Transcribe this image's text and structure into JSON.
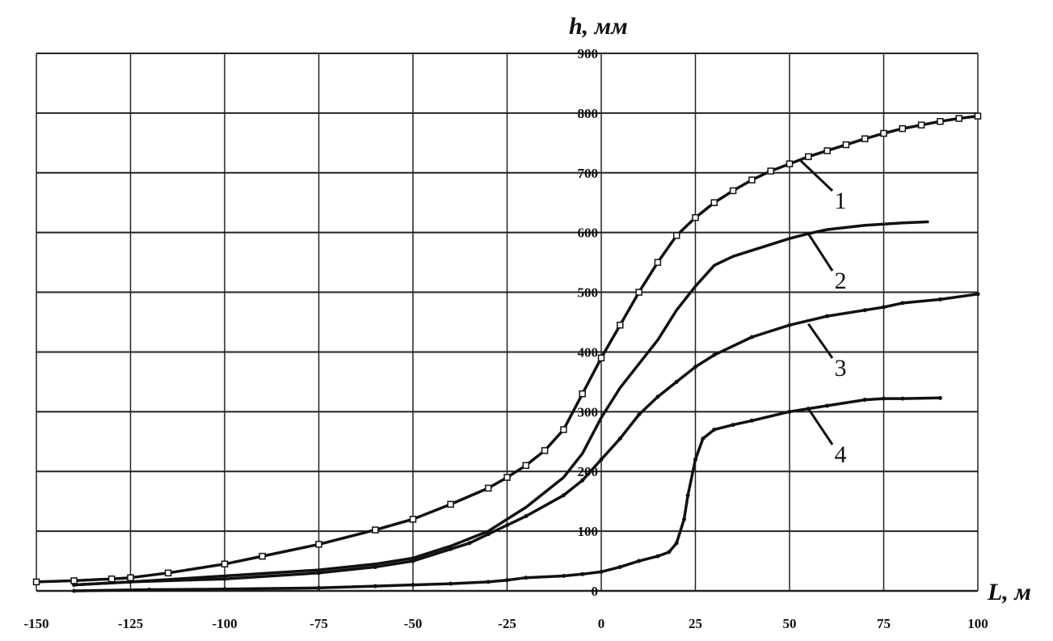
{
  "chart_data": {
    "type": "line",
    "title": "",
    "xlabel": "L, м",
    "ylabel": "h, мм",
    "xlim": [
      -150,
      100
    ],
    "ylim": [
      0,
      900
    ],
    "xticks": [
      -150,
      -125,
      -100,
      -75,
      -50,
      -25,
      0,
      25,
      50,
      75,
      100
    ],
    "yticks": [
      0,
      100,
      200,
      300,
      400,
      500,
      600,
      700,
      800,
      900
    ],
    "grid": true,
    "legend": "none (curve numbers with leader lines)",
    "series": [
      {
        "name": "1",
        "marker": "open-square",
        "x": [
          -150,
          -140,
          -130,
          -125,
          -115,
          -100,
          -90,
          -75,
          -60,
          -50,
          -40,
          -30,
          -25,
          -20,
          -15,
          -10,
          -5,
          0,
          5,
          10,
          15,
          20,
          25,
          30,
          35,
          40,
          45,
          50,
          55,
          60,
          65,
          70,
          75,
          80,
          85,
          90,
          95,
          100
        ],
        "y": [
          15,
          17,
          20,
          22,
          30,
          45,
          58,
          78,
          102,
          120,
          145,
          172,
          190,
          210,
          235,
          270,
          330,
          390,
          445,
          500,
          550,
          595,
          625,
          650,
          670,
          688,
          703,
          715,
          727,
          737,
          747,
          757,
          766,
          774,
          780,
          786,
          791,
          795
        ]
      },
      {
        "name": "2",
        "marker": "none",
        "x": [
          -140,
          -125,
          -100,
          -75,
          -60,
          -50,
          -40,
          -30,
          -25,
          -20,
          -15,
          -10,
          -5,
          0,
          5,
          10,
          15,
          20,
          25,
          30,
          35,
          40,
          50,
          55,
          60,
          70,
          80,
          87
        ],
        "y": [
          10,
          15,
          25,
          35,
          45,
          55,
          75,
          100,
          120,
          140,
          165,
          190,
          230,
          290,
          340,
          380,
          420,
          470,
          510,
          545,
          560,
          570,
          590,
          598,
          605,
          612,
          616,
          618
        ]
      },
      {
        "name": "3",
        "marker": "dot",
        "x": [
          -140,
          -125,
          -100,
          -75,
          -60,
          -50,
          -40,
          -35,
          -30,
          -25,
          -20,
          -10,
          -5,
          0,
          5,
          10,
          15,
          20,
          25,
          30,
          40,
          50,
          60,
          70,
          75,
          80,
          90,
          100
        ],
        "y": [
          10,
          15,
          20,
          30,
          40,
          50,
          70,
          80,
          95,
          110,
          125,
          160,
          185,
          220,
          255,
          295,
          325,
          350,
          375,
          395,
          425,
          445,
          460,
          470,
          475,
          482,
          488,
          497
        ]
      },
      {
        "name": "4",
        "marker": "dot",
        "x": [
          -140,
          -120,
          -100,
          -75,
          -60,
          -50,
          -40,
          -30,
          -25,
          -20,
          -10,
          -5,
          0,
          5,
          10,
          15,
          18,
          20,
          22,
          23,
          25,
          27,
          30,
          35,
          40,
          50,
          55,
          60,
          70,
          75,
          80,
          90
        ],
        "y": [
          0,
          2,
          3,
          5,
          8,
          10,
          12,
          15,
          18,
          22,
          25,
          28,
          32,
          40,
          50,
          58,
          65,
          80,
          120,
          160,
          220,
          255,
          270,
          278,
          285,
          300,
          305,
          310,
          320,
          322,
          322,
          323
        ]
      }
    ],
    "annotations": [
      "1",
      "2",
      "3",
      "4"
    ]
  }
}
